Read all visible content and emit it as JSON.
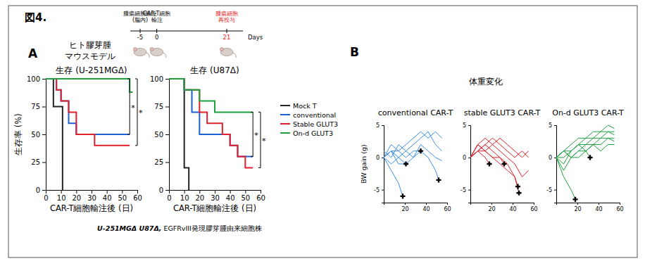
{
  "figure_title": "図4.",
  "panels": [
    "A",
    "B"
  ],
  "model_label": [
    "ヒト膠芽腫",
    "マウスモデル"
  ],
  "timeline": {
    "unit": "Days",
    "events": [
      {
        "day": -5,
        "label": [
          "腫瘍細胞輸注",
          "(脳内)"
        ]
      },
      {
        "day": 0,
        "label": [
          "CAR-T細胞",
          "輸注"
        ]
      },
      {
        "day": 21,
        "label": [
          "腫瘍細胞",
          "再投与"
        ],
        "color": "#e01b1b"
      }
    ]
  },
  "footnote": [
    "U-251MGΔ U87Δ,",
    " EGFRvIII発現膠芽腫由来細胞株"
  ],
  "panel_b_title": "体重変化",
  "chart_data": [
    {
      "type": "line",
      "line_style": "step",
      "title": "生存 (U-251MGΔ)",
      "xlabel": "CAR-T細胞輸注後 (日)",
      "ylabel": "生存率 (%)",
      "xlim": [
        0,
        60
      ],
      "xticks": [
        0,
        10,
        20,
        30,
        40,
        50,
        60
      ],
      "ylim": [
        0,
        100
      ],
      "yticks": [
        0,
        25,
        50,
        75,
        100
      ],
      "legend": "right",
      "series": [
        {
          "name": "Mock T",
          "color": "#222222",
          "x": [
            0,
            5,
            11
          ],
          "values": [
            100,
            75,
            0
          ]
        },
        {
          "name": "conventional",
          "color": "#1f5fd6",
          "x": [
            0,
            7,
            10,
            15,
            20,
            55
          ],
          "values": [
            100,
            90,
            80,
            60,
            50,
            50
          ]
        },
        {
          "name": "Stable GLUT3",
          "color": "#e0202a",
          "x": [
            0,
            7,
            10,
            15,
            20,
            32,
            55
          ],
          "values": [
            100,
            90,
            80,
            70,
            50,
            40,
            40
          ]
        },
        {
          "name": "On-d GLUT3",
          "color": "#1fa040",
          "x": [
            0,
            55,
            57
          ],
          "values": [
            100,
            88,
            88
          ]
        }
      ],
      "annotations": [
        {
          "text": "*",
          "x": 55,
          "y": [
            100,
            50
          ]
        },
        {
          "text": "*",
          "x": 60,
          "y": [
            100,
            40
          ]
        }
      ]
    },
    {
      "type": "line",
      "line_style": "step",
      "title": "生存 (U87Δ)",
      "xlabel": "CAR-T細胞輸注後 (日)",
      "xlim": [
        0,
        60
      ],
      "xticks": [
        0,
        10,
        20,
        30,
        40,
        50,
        60
      ],
      "ylim": [
        0,
        100
      ],
      "yticks": [
        0,
        25,
        50,
        75,
        100
      ],
      "series": [
        {
          "color": "#222222",
          "x": [
            0,
            10,
            13
          ],
          "values": [
            100,
            20,
            0
          ]
        },
        {
          "color": "#1f5fd6",
          "x": [
            0,
            10,
            15,
            20,
            40,
            45,
            55
          ],
          "values": [
            100,
            90,
            70,
            50,
            40,
            30,
            30
          ]
        },
        {
          "color": "#e0202a",
          "x": [
            0,
            10,
            20,
            25,
            35,
            40,
            45,
            50,
            55
          ],
          "values": [
            100,
            90,
            70,
            60,
            50,
            40,
            30,
            20,
            20
          ]
        },
        {
          "color": "#1fa040",
          "x": [
            0,
            10,
            20,
            30,
            55
          ],
          "values": [
            100,
            90,
            80,
            70,
            70
          ]
        }
      ],
      "annotations": [
        {
          "text": "*",
          "x": 55,
          "y": [
            70,
            30
          ]
        },
        {
          "text": "*",
          "x": 60,
          "y": [
            70,
            20
          ]
        }
      ]
    },
    {
      "type": "line",
      "title": "conventional CAR-T",
      "ylabel": "BW gain (g)",
      "color": "#3a8ee6",
      "xlim": [
        0,
        60
      ],
      "xticks": [
        20,
        40,
        60
      ],
      "ylim": [
        -7,
        5
      ],
      "yticks": [
        -5,
        0,
        5
      ],
      "series": [
        {
          "x": [
            0,
            7,
            14,
            21,
            28,
            35,
            42,
            49,
            55
          ],
          "values": [
            0,
            1,
            1,
            2,
            3,
            4,
            3,
            4,
            3
          ]
        },
        {
          "x": [
            0,
            7,
            14,
            21,
            28,
            35,
            42,
            49,
            55
          ],
          "values": [
            0,
            -1,
            0,
            1,
            2,
            3,
            4,
            2,
            1
          ]
        },
        {
          "x": [
            0,
            7,
            14,
            21,
            28,
            35,
            42,
            49,
            55
          ],
          "values": [
            1,
            0,
            2,
            1,
            0,
            2,
            1,
            0,
            -0.5
          ]
        },
        {
          "x": [
            0,
            7,
            14,
            18
          ],
          "values": [
            0,
            -2,
            -4,
            -6
          ]
        },
        {
          "x": [
            0,
            7,
            14,
            21
          ],
          "values": [
            0,
            1,
            -1,
            -1
          ]
        },
        {
          "x": [
            0,
            7,
            14,
            21,
            28,
            35
          ],
          "values": [
            0,
            2,
            1,
            0,
            1,
            1
          ]
        },
        {
          "x": [
            0,
            7,
            14,
            21,
            28,
            35,
            42,
            49,
            52
          ],
          "values": [
            0,
            1,
            0,
            -1,
            0,
            1,
            0,
            -2,
            -3.5
          ]
        },
        {
          "type": "scatter",
          "marker": "cross",
          "color": "#000000",
          "x": [
            18,
            21,
            35,
            52
          ],
          "values": [
            -6,
            -1,
            1,
            -3.5
          ]
        }
      ]
    },
    {
      "type": "line",
      "title": "stable GLUT3 CAR-T",
      "color": "#e0202a",
      "xlim": [
        0,
        60
      ],
      "xticks": [
        20,
        40,
        60
      ],
      "ylim": [
        -7,
        5
      ],
      "yticks": [
        -5,
        0,
        5
      ],
      "series": [
        {
          "x": [
            0,
            7,
            14,
            21,
            28,
            35,
            42,
            49,
            55
          ],
          "values": [
            0,
            2,
            3,
            2,
            1,
            0,
            -1,
            -3,
            -2
          ]
        },
        {
          "x": [
            0,
            7,
            14,
            21,
            28,
            35,
            42,
            49,
            55
          ],
          "values": [
            0,
            1,
            2,
            3,
            2,
            1,
            0,
            1,
            0
          ]
        },
        {
          "x": [
            0,
            7,
            14,
            21,
            28,
            35,
            42,
            49,
            55
          ],
          "values": [
            0,
            2,
            1,
            2,
            3,
            2,
            1,
            0,
            1
          ]
        },
        {
          "x": [
            0,
            7,
            14,
            21,
            28,
            35,
            42,
            46
          ],
          "values": [
            0,
            1,
            2,
            1,
            0,
            -1,
            -3,
            -5.5
          ]
        },
        {
          "x": [
            0,
            7,
            14,
            21,
            28,
            35,
            42,
            45
          ],
          "values": [
            0,
            1,
            1,
            0,
            -1,
            -2,
            -3,
            -4.5
          ]
        },
        {
          "x": [
            0,
            7,
            14,
            18
          ],
          "values": [
            0,
            1,
            0,
            -1
          ]
        },
        {
          "x": [
            0,
            7,
            14,
            21,
            28,
            32
          ],
          "values": [
            0,
            2,
            1,
            0,
            0,
            -1
          ]
        },
        {
          "type": "scatter",
          "marker": "cross",
          "color": "#000000",
          "x": [
            18,
            32,
            45,
            46
          ],
          "values": [
            -1,
            -1,
            -4.5,
            -5.5
          ]
        }
      ]
    },
    {
      "type": "line",
      "title": "On-d GLUT3 CAR-T",
      "color": "#1fa040",
      "xlim": [
        0,
        60
      ],
      "xticks": [
        20,
        40,
        60
      ],
      "ylim": [
        -7,
        5
      ],
      "yticks": [
        -5,
        0,
        5
      ],
      "series": [
        {
          "x": [
            0,
            7,
            14,
            21,
            28,
            35,
            42,
            49,
            55
          ],
          "values": [
            0,
            1,
            2,
            3,
            3,
            4,
            4,
            5,
            4.5
          ]
        },
        {
          "x": [
            0,
            7,
            14,
            21,
            28,
            35,
            42,
            49,
            55
          ],
          "values": [
            0,
            0,
            1,
            2,
            3,
            3,
            4,
            4,
            4
          ]
        },
        {
          "x": [
            0,
            7,
            14,
            21,
            28,
            35,
            42,
            49,
            55
          ],
          "values": [
            0,
            -1,
            1,
            2,
            2,
            3,
            3,
            4,
            3.5
          ]
        },
        {
          "x": [
            0,
            7,
            14,
            21,
            28,
            35,
            42,
            49,
            55
          ],
          "values": [
            0,
            1,
            0,
            1,
            2,
            2,
            3,
            3,
            3
          ]
        },
        {
          "x": [
            0,
            7,
            14,
            21,
            28,
            35,
            42,
            49,
            55
          ],
          "values": [
            0,
            -2,
            0,
            1,
            1,
            2,
            2,
            3,
            2.5
          ]
        },
        {
          "x": [
            0,
            7,
            14,
            21,
            28,
            35,
            42,
            49,
            55
          ],
          "values": [
            0,
            1,
            1,
            2,
            1,
            2,
            1,
            2,
            2
          ]
        },
        {
          "x": [
            0,
            7,
            14,
            18
          ],
          "values": [
            0,
            -3,
            -5,
            -6.5
          ]
        },
        {
          "x": [
            0,
            7,
            14,
            21,
            28,
            32
          ],
          "values": [
            0,
            1,
            0,
            0,
            1,
            0
          ]
        },
        {
          "type": "scatter",
          "marker": "cross",
          "color": "#000000",
          "x": [
            18,
            32
          ],
          "values": [
            -6.5,
            0
          ]
        }
      ]
    }
  ]
}
